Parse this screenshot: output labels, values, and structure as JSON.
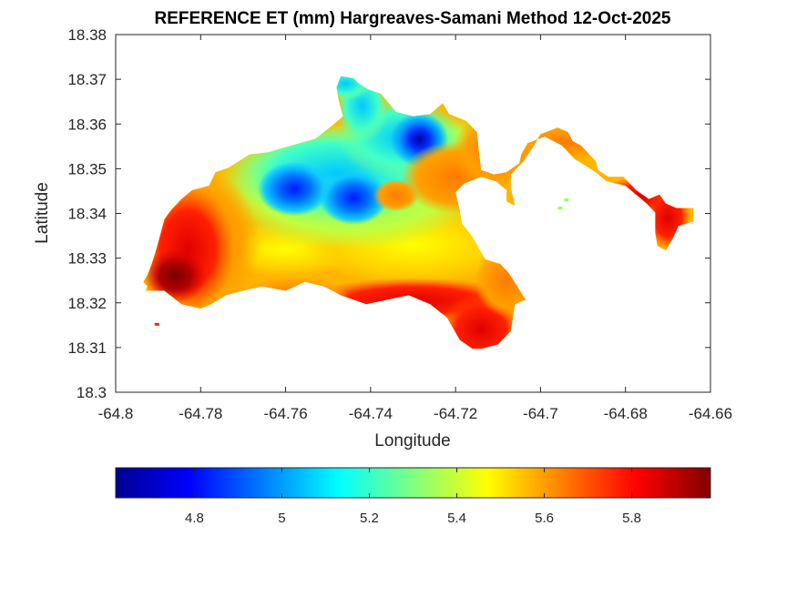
{
  "chart_data": {
    "type": "heatmap",
    "title": "REFERENCE ET (mm) Hargreaves-Samani Method  12-Oct-2025",
    "xlabel": "Longitude",
    "ylabel": "Latitude",
    "xlim": [
      -64.8,
      -64.66
    ],
    "ylim": [
      18.3,
      18.38
    ],
    "xticks": [
      -64.8,
      -64.78,
      -64.76,
      -64.74,
      -64.72,
      -64.7,
      -64.68,
      -64.66
    ],
    "xtick_labels": [
      "-64.8",
      "-64.78",
      "-64.76",
      "-64.74",
      "-64.72",
      "-64.7",
      "-64.68",
      "-64.66"
    ],
    "yticks": [
      18.3,
      18.31,
      18.32,
      18.33,
      18.34,
      18.35,
      18.36,
      18.37,
      18.38
    ],
    "ytick_labels": [
      "18.3",
      "18.31",
      "18.32",
      "18.33",
      "18.34",
      "18.35",
      "18.36",
      "18.37",
      "18.38"
    ],
    "colormap": "jet",
    "colorbar": {
      "orientation": "horizontal",
      "location": "below",
      "clim": [
        4.62,
        5.98
      ],
      "ticks": [
        4.8,
        5.0,
        5.2,
        5.4,
        5.6,
        5.8
      ],
      "tick_labels": [
        "4.8",
        "5",
        "5.2",
        "5.4",
        "5.6",
        "5.8"
      ]
    },
    "grid": false,
    "land_outline": [
      [
        -64.7925,
        18.3237
      ],
      [
        -64.793,
        18.3227
      ],
      [
        -64.7885,
        18.3227
      ],
      [
        -64.7845,
        18.3197
      ],
      [
        -64.78,
        18.3187
      ],
      [
        -64.7775,
        18.3197
      ],
      [
        -64.774,
        18.3217
      ],
      [
        -64.77,
        18.3227
      ],
      [
        -64.7655,
        18.3237
      ],
      [
        -64.76,
        18.3227
      ],
      [
        -64.7555,
        18.3247
      ],
      [
        -64.751,
        18.3237
      ],
      [
        -64.747,
        18.3217
      ],
      [
        -64.741,
        18.3197
      ],
      [
        -64.736,
        18.3207
      ],
      [
        -64.731,
        18.3217
      ],
      [
        -64.726,
        18.3197
      ],
      [
        -64.722,
        18.3167
      ],
      [
        -64.719,
        18.3117
      ],
      [
        -64.716,
        18.3097
      ],
      [
        -64.714,
        18.3097
      ],
      [
        -64.71,
        18.3107
      ],
      [
        -64.707,
        18.3137
      ],
      [
        -64.706,
        18.3197
      ],
      [
        -64.7035,
        18.3207
      ],
      [
        -64.7055,
        18.3237
      ],
      [
        -64.7075,
        18.3267
      ],
      [
        -64.7095,
        18.3287
      ],
      [
        -64.713,
        18.3297
      ],
      [
        -64.716,
        18.3347
      ],
      [
        -64.7185,
        18.3377
      ],
      [
        -64.719,
        18.3407
      ],
      [
        -64.72,
        18.3447
      ],
      [
        -64.718,
        18.3467
      ],
      [
        -64.714,
        18.3482
      ],
      [
        -64.7105,
        18.3472
      ],
      [
        -64.708,
        18.3452
      ],
      [
        -64.708,
        18.3427
      ],
      [
        -64.706,
        18.3417
      ],
      [
        -64.707,
        18.3457
      ],
      [
        -64.707,
        18.3487
      ],
      [
        -64.704,
        18.3517
      ],
      [
        -64.7015,
        18.3552
      ],
      [
        -64.7,
        18.3577
      ],
      [
        -64.696,
        18.3592
      ],
      [
        -64.6935,
        18.3582
      ],
      [
        -64.6925,
        18.3562
      ],
      [
        -64.6905,
        18.3552
      ],
      [
        -64.689,
        18.3537
      ],
      [
        -64.687,
        18.3517
      ],
      [
        -64.6865,
        18.3497
      ],
      [
        -64.684,
        18.3482
      ],
      [
        -64.6805,
        18.3482
      ],
      [
        -64.6775,
        18.3452
      ],
      [
        -64.6745,
        18.3432
      ],
      [
        -64.672,
        18.3442
      ],
      [
        -64.6705,
        18.3422
      ],
      [
        -64.668,
        18.3412
      ],
      [
        -64.664,
        18.3412
      ],
      [
        -64.664,
        18.3382
      ],
      [
        -64.6675,
        18.3372
      ],
      [
        -64.669,
        18.3342
      ],
      [
        -64.6705,
        18.3317
      ],
      [
        -64.6725,
        18.3327
      ],
      [
        -64.673,
        18.3357
      ],
      [
        -64.673,
        18.3402
      ],
      [
        -64.675,
        18.3422
      ],
      [
        -64.68,
        18.3462
      ],
      [
        -64.6845,
        18.3472
      ],
      [
        -64.687,
        18.3492
      ],
      [
        -64.692,
        18.3522
      ],
      [
        -64.695,
        18.3552
      ],
      [
        -64.699,
        18.3572
      ],
      [
        -64.703,
        18.3557
      ],
      [
        -64.7045,
        18.3532
      ],
      [
        -64.705,
        18.3512
      ],
      [
        -64.708,
        18.3492
      ],
      [
        -64.711,
        18.3487
      ],
      [
        -64.714,
        18.3497
      ],
      [
        -64.7145,
        18.3537
      ],
      [
        -64.715,
        18.3582
      ],
      [
        -64.7175,
        18.3607
      ],
      [
        -64.7215,
        18.3622
      ],
      [
        -64.723,
        18.3647
      ],
      [
        -64.726,
        18.3622
      ],
      [
        -64.73,
        18.3617
      ],
      [
        -64.734,
        18.3627
      ],
      [
        -64.7375,
        18.3667
      ],
      [
        -64.7405,
        18.3677
      ],
      [
        -64.743,
        18.3692
      ],
      [
        -64.744,
        18.3702
      ],
      [
        -64.747,
        18.3707
      ],
      [
        -64.748,
        18.3682
      ],
      [
        -64.7475,
        18.3652
      ],
      [
        -64.7465,
        18.3617
      ],
      [
        -64.749,
        18.3597
      ],
      [
        -64.753,
        18.3567
      ],
      [
        -64.7585,
        18.3552
      ],
      [
        -64.764,
        18.3537
      ],
      [
        -64.7685,
        18.3532
      ],
      [
        -64.7735,
        18.3502
      ],
      [
        -64.7765,
        18.3492
      ],
      [
        -64.778,
        18.3462
      ],
      [
        -64.782,
        18.3452
      ],
      [
        -64.7845,
        18.3432
      ],
      [
        -64.787,
        18.3407
      ],
      [
        -64.7885,
        18.3387
      ],
      [
        -64.7895,
        18.3352
      ],
      [
        -64.7905,
        18.3317
      ],
      [
        -64.7915,
        18.3287
      ],
      [
        -64.7925,
        18.3262
      ],
      [
        -64.7935,
        18.3247
      ]
    ]
  }
}
